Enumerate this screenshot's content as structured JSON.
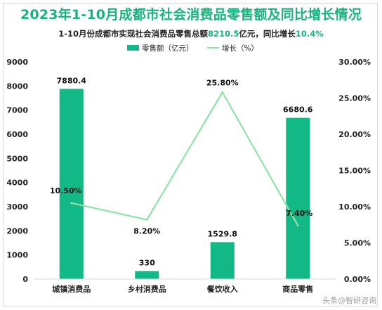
{
  "title": "2023年1-10月成都市社会消费品零售额及同比增长情况",
  "subtitle": {
    "prefix": "1-10月份成都市实现社会消费品零售总额",
    "total": "8210.5",
    "middle": "亿元，同比增长",
    "growth": "10.4%"
  },
  "watermark": "头条@智研咨询",
  "colors": {
    "title": "#18b37e",
    "accent": "#18b37e",
    "bar": "#12b886",
    "line": "#8de3a4",
    "axis_text": "#222222",
    "grid": "#d9d9d9"
  },
  "chart_data": {
    "type": "bar",
    "categories": [
      "城镇消费品",
      "乡村消费品",
      "餐饮收入",
      "商品零售"
    ],
    "series": [
      {
        "name": "零售额（亿元）",
        "type": "bar",
        "axis": "left",
        "values": [
          7880.4,
          330,
          1529.8,
          6680.6
        ],
        "labels": [
          "7880.4",
          "330",
          "1529.8",
          "6680.6"
        ]
      },
      {
        "name": "增长（%）",
        "type": "line",
        "axis": "right",
        "values": [
          10.5,
          8.2,
          25.8,
          7.4
        ],
        "labels": [
          "10.50%",
          "8.20%",
          "25.80%",
          "7.40%"
        ]
      }
    ],
    "ylim_left": [
      0,
      9000
    ],
    "yticks_left": [
      "0",
      "1000",
      "2000",
      "3000",
      "4000",
      "5000",
      "6000",
      "7000",
      "8000",
      "9000"
    ],
    "ylim_right": [
      0,
      30
    ],
    "yticks_right": [
      "0.00%",
      "5.00%",
      "10.00%",
      "15.00%",
      "20.00%",
      "25.00%",
      "30.00%"
    ],
    "legend_position": "top",
    "grid": false
  }
}
